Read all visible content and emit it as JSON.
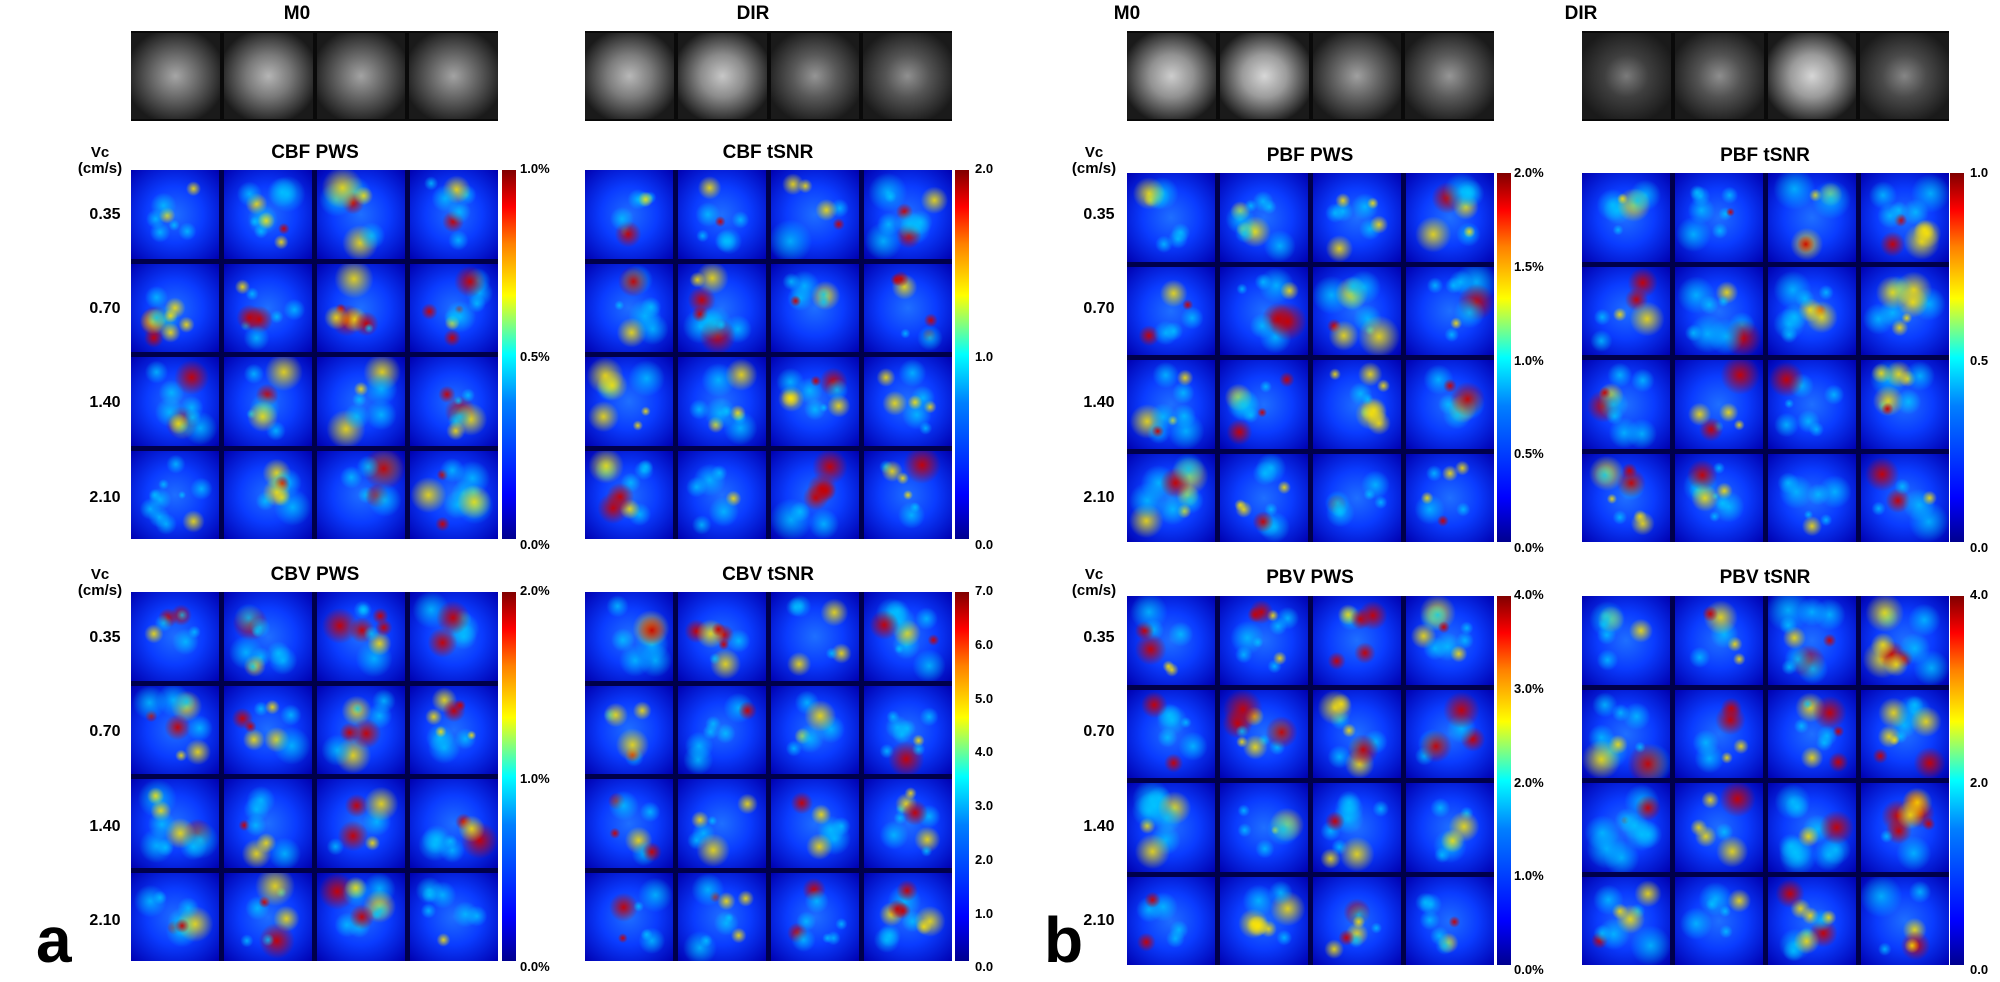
{
  "panels": [
    {
      "letter": "a",
      "top_titles": [
        "M0",
        "DIR"
      ],
      "maps": [
        {
          "title": "CBF PWS",
          "vc_label": "Vc\n(cm/s)",
          "rows": [
            "0.35",
            "0.70",
            "1.40",
            "2.10"
          ],
          "ticks": [
            "1.0%",
            "0.5%",
            "0.0%"
          ]
        },
        {
          "title": "CBF tSNR",
          "ticks": [
            "2.0",
            "1.0",
            "0.0"
          ]
        },
        {
          "title": "CBV PWS",
          "vc_label": "Vc\n(cm/s)",
          "rows": [
            "0.35",
            "0.70",
            "1.40",
            "2.10"
          ],
          "ticks": [
            "2.0%",
            "1.0%",
            "0.0%"
          ]
        },
        {
          "title": "CBV tSNR",
          "ticks": [
            "7.0",
            "6.0",
            "5.0",
            "4.0",
            "3.0",
            "2.0",
            "1.0",
            "0.0"
          ]
        }
      ]
    },
    {
      "letter": "b",
      "top_titles": [
        "M0",
        "DIR"
      ],
      "maps": [
        {
          "title": "PBF PWS",
          "vc_label": "Vc\n(cm/s)",
          "rows": [
            "0.35",
            "0.70",
            "1.40",
            "2.10"
          ],
          "ticks": [
            "2.0%",
            "1.5%",
            "1.0%",
            "0.5%",
            "0.0%"
          ]
        },
        {
          "title": "PBF tSNR",
          "ticks": [
            "1.0",
            "0.5",
            "0.0"
          ]
        },
        {
          "title": "PBV PWS",
          "vc_label": "Vc\n(cm/s)",
          "rows": [
            "0.35",
            "0.70",
            "1.40",
            "2.10"
          ],
          "ticks": [
            "4.0%",
            "3.0%",
            "2.0%",
            "1.0%",
            "0.0%"
          ]
        },
        {
          "title": "PBV tSNR",
          "ticks": [
            "4.0",
            "2.0",
            "0.0"
          ]
        }
      ]
    }
  ],
  "colormap": "jet",
  "colors": {
    "background": "#ffffff",
    "map_background": "#00004a",
    "strip_background": "#0a0a0a"
  }
}
